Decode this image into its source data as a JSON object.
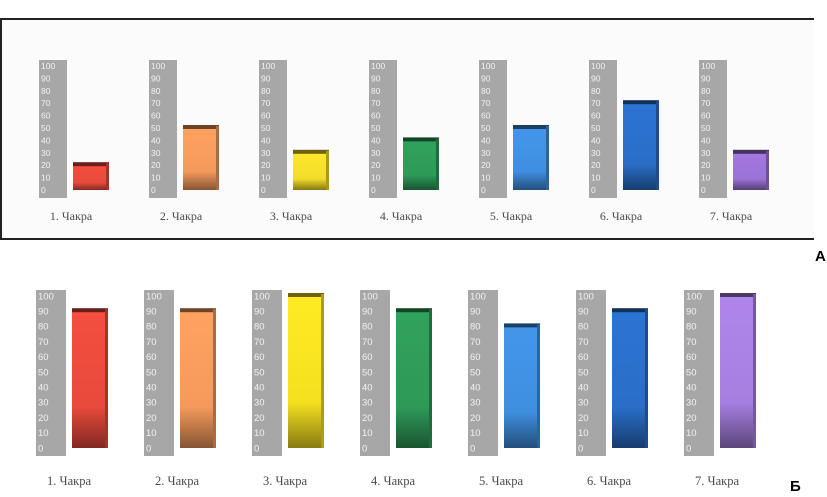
{
  "chart_data": [
    {
      "type": "bar",
      "panel_label": "А",
      "categories": [
        "1. Чакра",
        "2. Чакра",
        "3. Чакра",
        "4. Чакра",
        "5. Чакра",
        "6. Чакра",
        "7. Чакра"
      ],
      "values": [
        20,
        50,
        30,
        40,
        50,
        70,
        30
      ],
      "ylim": [
        0,
        100
      ],
      "yticks": [
        "100",
        "90",
        "80",
        "70",
        "60",
        "50",
        "40",
        "30",
        "20",
        "10",
        "0"
      ],
      "colors": [
        "#e84a3c",
        "#f49a5c",
        "#f2dc2a",
        "#2e9a58",
        "#3f8fe0",
        "#2a6ec8",
        "#9b72d6"
      ]
    },
    {
      "type": "bar",
      "panel_label": "Б",
      "categories": [
        "1. Чакра",
        "2. Чакра",
        "3. Чакра",
        "4. Чакра",
        "5. Чакра",
        "6. Чакра",
        "7. Чакра"
      ],
      "values": [
        90,
        90,
        100,
        90,
        80,
        90,
        100
      ],
      "ylim": [
        0,
        100
      ],
      "yticks": [
        "100",
        "90",
        "80",
        "70",
        "60",
        "50",
        "40",
        "30",
        "20",
        "10",
        "0"
      ],
      "colors": [
        "#e84a3c",
        "#f49a5c",
        "#f5e020",
        "#2e9a58",
        "#3f8fe0",
        "#2a6ec8",
        "#a77fe0"
      ]
    }
  ]
}
